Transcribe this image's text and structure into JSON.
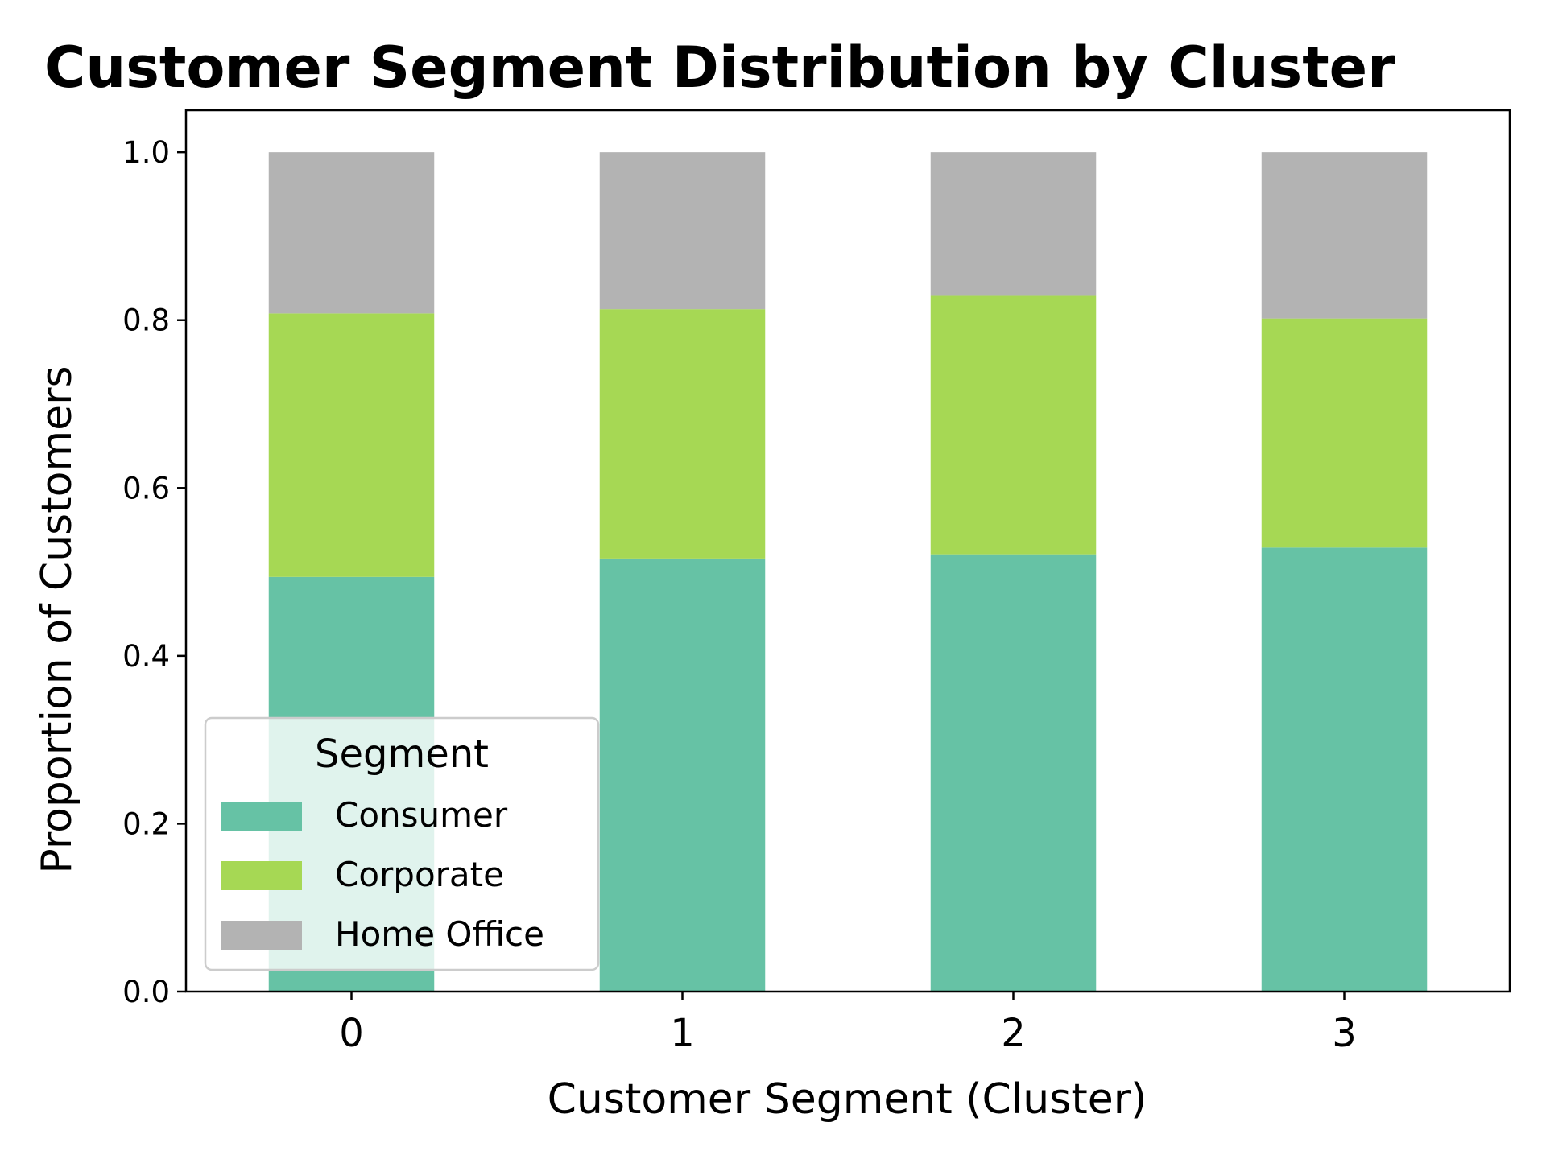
{
  "chart_data": {
    "type": "bar",
    "stacked": true,
    "title": "Customer Segment Distribution by Cluster",
    "xlabel": "Customer Segment (Cluster)",
    "ylabel": "Proportion of Customers",
    "categories": [
      "0",
      "1",
      "2",
      "3"
    ],
    "yticks": [
      "0.0",
      "0.2",
      "0.4",
      "0.6",
      "0.8",
      "1.0"
    ],
    "ylim": [
      0,
      1.05
    ],
    "grid": false,
    "series": [
      {
        "name": "Consumer",
        "color": "#66c2a5",
        "values": [
          0.494,
          0.516,
          0.521,
          0.529
        ]
      },
      {
        "name": "Corporate",
        "color": "#a6d854",
        "values": [
          0.314,
          0.297,
          0.308,
          0.273
        ]
      },
      {
        "name": "Home Office",
        "color": "#b3b3b3",
        "values": [
          0.192,
          0.187,
          0.171,
          0.198
        ]
      }
    ],
    "legend": {
      "title": "Segment",
      "placement": "lower-left"
    }
  }
}
